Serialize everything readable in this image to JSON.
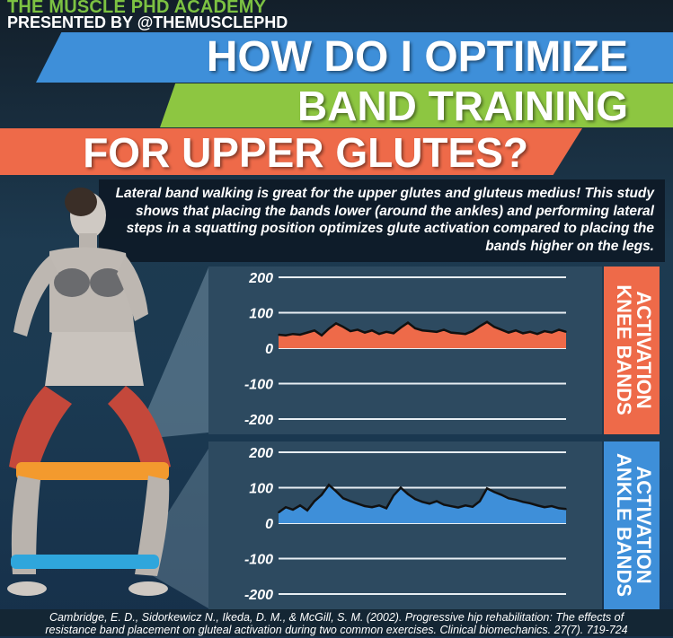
{
  "header": {
    "academy": "THE MUSCLE PHD ACADEMY",
    "presented": "PRESENTED BY @THEMUSCLEPHD"
  },
  "title": {
    "line1": "HOW DO I OPTIMIZE",
    "line2": "BAND TRAINING",
    "line3": "FOR UPPER GLUTES?"
  },
  "intro": {
    "text": "Lateral band walking is great for the upper glutes and gluteus medius! This study shows that placing the bands lower (around the ankles) and performing lateral steps in a squatting position optimizes glute activation compared to placing the bands higher on the legs."
  },
  "citation": {
    "line1": "Cambridge, E. D., Sidorkewicz N., Ikeda, D. M., & McGill, S. M. (2002). Progressive hip rehabilitation: The effects of",
    "line2": "resistance band placement on gluteal activation during two common exercises. Clinical biomechanics. 27(7). 719-724"
  },
  "colors": {
    "blue": "#3e8fd9",
    "green": "#8dc641",
    "orange": "#ee6a49",
    "navy": "#1b3a52"
  },
  "chart_data": [
    {
      "type": "area",
      "label_line1": "ACTIVATION",
      "label_line2": "KNEE BANDS",
      "color": "#ee6a49",
      "ylim": [
        -200,
        200
      ],
      "yticks": [
        200,
        100,
        0,
        -100,
        -200
      ],
      "ytick_labels": [
        "200",
        "100",
        "0",
        "-100",
        "-200"
      ],
      "x": [
        0,
        1,
        2,
        3,
        4,
        5,
        6,
        7,
        8,
        9,
        10,
        11,
        12,
        13,
        14,
        15,
        16,
        17,
        18,
        19,
        20,
        21,
        22,
        23,
        24,
        25,
        26,
        27,
        28,
        29,
        30,
        31,
        32,
        33,
        34,
        35,
        36,
        37,
        38,
        39,
        40
      ],
      "values": [
        38,
        36,
        40,
        38,
        44,
        50,
        36,
        55,
        70,
        60,
        48,
        52,
        44,
        50,
        40,
        46,
        42,
        58,
        72,
        56,
        50,
        48,
        46,
        52,
        44,
        42,
        40,
        48,
        62,
        74,
        60,
        52,
        44,
        50,
        42,
        46,
        40,
        48,
        44,
        52,
        46
      ]
    },
    {
      "type": "area",
      "label_line1": "ACTIVATION",
      "label_line2": "ANKLE BANDS",
      "color": "#3e8fd9",
      "ylim": [
        -200,
        200
      ],
      "yticks": [
        200,
        100,
        0,
        -100,
        -200
      ],
      "ytick_labels": [
        "200",
        "100",
        "0",
        "-100",
        "-200"
      ],
      "x": [
        0,
        1,
        2,
        3,
        4,
        5,
        6,
        7,
        8,
        9,
        10,
        11,
        12,
        13,
        14,
        15,
        16,
        17,
        18,
        19,
        20,
        21,
        22,
        23,
        24,
        25,
        26,
        27,
        28,
        29,
        30,
        31,
        32,
        33,
        34,
        35,
        36,
        37,
        38,
        39,
        40
      ],
      "values": [
        30,
        45,
        38,
        50,
        36,
        62,
        80,
        108,
        90,
        70,
        62,
        55,
        48,
        45,
        50,
        42,
        78,
        100,
        82,
        68,
        60,
        55,
        62,
        52,
        48,
        44,
        50,
        46,
        62,
        98,
        88,
        80,
        70,
        66,
        60,
        56,
        50,
        45,
        48,
        42,
        40
      ]
    }
  ]
}
